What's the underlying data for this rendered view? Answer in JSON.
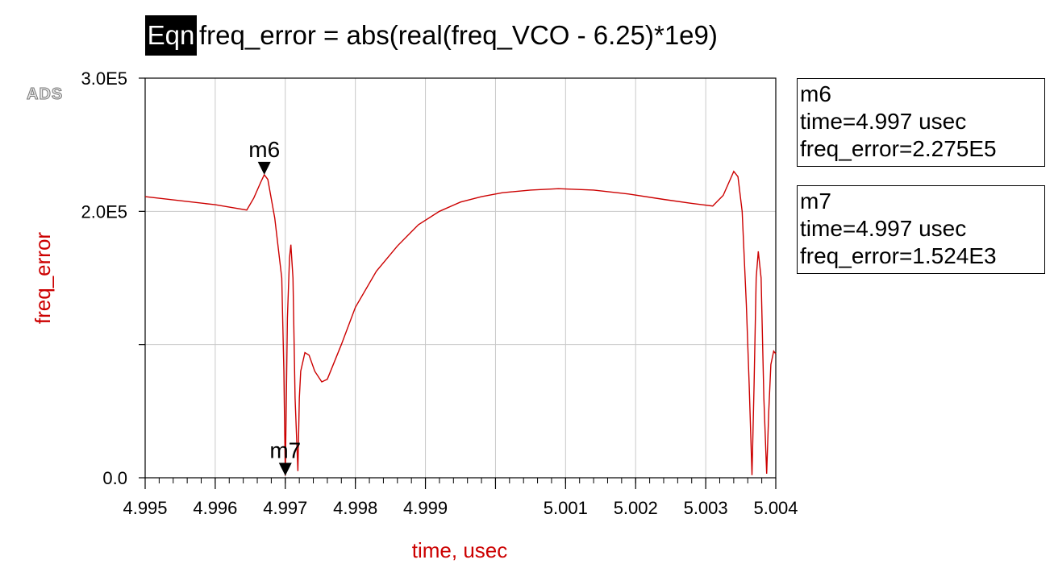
{
  "header": {
    "eqn_label": "Eqn",
    "equation": "freq_error = abs(real(freq_VCO - 6.25)*1e9)"
  },
  "logo": {
    "text": "ADS"
  },
  "markers": [
    {
      "name": "m6",
      "time_text": "time=4.997 usec",
      "value_text": "freq_error=2.275E5",
      "x": 4.9967,
      "y": 227500,
      "label_pos": "above"
    },
    {
      "name": "m7",
      "time_text": "time=4.997 usec",
      "value_text": "freq_error=1.524E3",
      "x": 4.997,
      "y": 1524,
      "label_pos": "above"
    }
  ],
  "colors": {
    "trace": "#cc0000",
    "axis_label": "#cc0000",
    "grid": "#c8c8c8",
    "axis": "#000000"
  },
  "chart_data": {
    "type": "line",
    "title": "",
    "xlabel": "time, usec",
    "ylabel": "freq_error",
    "xlim": [
      4.995,
      5.004
    ],
    "ylim": [
      0,
      300000
    ],
    "x_ticks": [
      4.995,
      4.996,
      4.997,
      4.998,
      4.999,
      5.0,
      5.001,
      5.002,
      5.003,
      5.004
    ],
    "x_tick_labels": [
      "4.995",
      "4.996",
      "4.997",
      "4.998",
      "4.999",
      "",
      "5.001",
      "5.002",
      "5.003",
      "5.004"
    ],
    "y_ticks": [
      0,
      100000,
      200000,
      300000
    ],
    "y_tick_labels": [
      "0.0",
      "",
      "2.0E5",
      "3.0E5"
    ],
    "grid": true,
    "series": [
      {
        "x": [
          4.995,
          4.9955,
          4.996,
          4.99645,
          4.99655,
          4.99665,
          4.9967,
          4.99675,
          4.99685,
          4.99695,
          4.99698,
          4.997,
          4.99703,
          4.99706,
          4.99708,
          4.99711,
          4.99714,
          4.99718,
          4.9972,
          4.99722,
          4.99728,
          4.99734,
          4.99742,
          4.99752,
          4.9976,
          4.9978,
          4.998,
          4.9983,
          4.9986,
          4.9989,
          4.9992,
          4.9995,
          4.9998,
          5.0001,
          5.0005,
          5.0009,
          5.0014,
          5.0019,
          5.0024,
          5.0028,
          5.0031,
          5.00325,
          5.0034,
          5.00346,
          5.00352,
          5.00358,
          5.00362,
          5.00366,
          5.00369,
          5.00372,
          5.00375,
          5.00379,
          5.00383,
          5.00387,
          5.0039,
          5.00393,
          5.00397,
          5.004
        ],
        "y": [
          211000,
          208000,
          205000,
          201000,
          210000,
          222000,
          227500,
          224000,
          195000,
          150000,
          80000,
          1524,
          120000,
          165000,
          175000,
          150000,
          60000,
          5000,
          60000,
          80000,
          94000,
          92000,
          80000,
          72000,
          74000,
          100000,
          128000,
          155000,
          174000,
          190000,
          200000,
          207000,
          211000,
          214000,
          216000,
          217000,
          216000,
          213000,
          209000,
          206000,
          204000,
          212000,
          230000,
          226000,
          200000,
          130000,
          70000,
          2000,
          70000,
          150000,
          170000,
          150000,
          60000,
          3000,
          50000,
          85000,
          95000,
          93000
        ]
      }
    ]
  }
}
